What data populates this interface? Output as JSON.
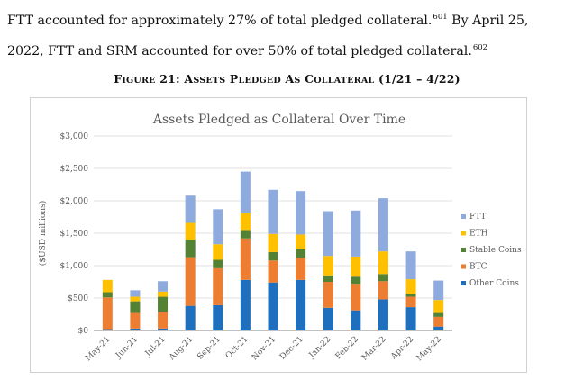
{
  "text": {
    "paragraph_line1": "FTT accounted for approximately 27% of total pledged collateral.",
    "footnote_601": "601",
    "paragraph_line1_tail": " By April 25,",
    "paragraph_line2": "2022, FTT and SRM accounted for over 50% of total pledged collateral.",
    "footnote_602": "602",
    "figure_title": "Figure 21: Assets Pledged As Collateral (1/21 – 4/22)"
  },
  "chart_data": {
    "type": "bar",
    "stacked": true,
    "title": "Assets Pledged as Collateral Over Time",
    "ylabel": "($USD millions)",
    "xlabel": "",
    "ylim": [
      0,
      3000
    ],
    "yticks": [
      "$0",
      "$500",
      "$1,000",
      "$1,500",
      "$2,000",
      "$2,500",
      "$3,000"
    ],
    "ytick_values": [
      0,
      500,
      1000,
      1500,
      2000,
      2500,
      3000
    ],
    "grid": true,
    "legend_position": "right",
    "categories": [
      "May-21",
      "Jun-21",
      "Jul-21",
      "Aug-21",
      "Sep-21",
      "Oct-21",
      "Nov-21",
      "Dec-21",
      "Jan-22",
      "Feb-22",
      "Mar-22",
      "Apr-22",
      "May-22"
    ],
    "series": [
      {
        "name": "Other Coins",
        "color": "#1f6fbf",
        "values": [
          20,
          30,
          30,
          380,
          390,
          780,
          740,
          780,
          350,
          310,
          480,
          360,
          60
        ]
      },
      {
        "name": "BTC",
        "color": "#ed7d31",
        "values": [
          490,
          240,
          250,
          750,
          570,
          640,
          340,
          340,
          400,
          410,
          280,
          160,
          150
        ]
      },
      {
        "name": "Stable Coins",
        "color": "#548235",
        "values": [
          80,
          180,
          240,
          270,
          130,
          130,
          130,
          130,
          100,
          110,
          110,
          50,
          60
        ]
      },
      {
        "name": "ETH",
        "color": "#ffc000",
        "values": [
          190,
          70,
          80,
          260,
          240,
          260,
          280,
          230,
          300,
          310,
          350,
          220,
          200
        ]
      },
      {
        "name": "FTT",
        "color": "#8faadc",
        "values": [
          0,
          100,
          160,
          420,
          540,
          640,
          680,
          670,
          690,
          710,
          820,
          430,
          300
        ]
      }
    ],
    "legend_order": [
      "FTT",
      "ETH",
      "Stable Coins",
      "BTC",
      "Other Coins"
    ],
    "axis_color": "#595959",
    "grid_color": "#d9d9d9"
  }
}
